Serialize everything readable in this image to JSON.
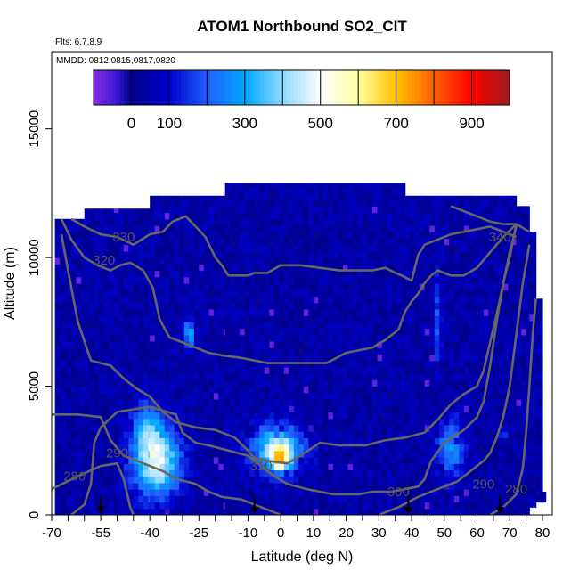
{
  "chart_data": {
    "type": "heatmap",
    "title": "ATOM1 Northbound SO2_CIT",
    "flights_note": "Flts: 6,7,8,9",
    "dates_note": "MMDD: 0812,0815,0817,0820",
    "xlabel": "Latitude (deg N)",
    "ylabel": "Altitude (m)",
    "xlim": [
      -70,
      83
    ],
    "ylim": [
      0,
      18000
    ],
    "x_ticks": [
      -70,
      -55,
      -40,
      -25,
      -10,
      0,
      10,
      20,
      30,
      40,
      50,
      60,
      70,
      80
    ],
    "y_ticks": [
      0,
      5000,
      10000,
      15000
    ],
    "colorbar": {
      "min": -100,
      "max": 1000,
      "ticks": [
        0,
        100,
        300,
        500,
        700,
        900
      ],
      "stops": [
        {
          "value": -100,
          "color": "#8a2be2"
        },
        {
          "value": -40,
          "color": "#3a1ad6"
        },
        {
          "value": 0,
          "color": "#00008b"
        },
        {
          "value": 100,
          "color": "#0000cd"
        },
        {
          "value": 200,
          "color": "#1e60ff"
        },
        {
          "value": 300,
          "color": "#00a8ff"
        },
        {
          "value": 400,
          "color": "#8fd8ff"
        },
        {
          "value": 500,
          "color": "#ffffff"
        },
        {
          "value": 600,
          "color": "#ffffa0"
        },
        {
          "value": 700,
          "color": "#ffc000"
        },
        {
          "value": 800,
          "color": "#ff6000"
        },
        {
          "value": 900,
          "color": "#ff0000"
        },
        {
          "value": 1000,
          "color": "#9b1b1b"
        }
      ]
    },
    "background_so2": 40,
    "coverage_columns": [
      {
        "lat": [
          -69,
          -67
        ],
        "alt": [
          0,
          11500
        ]
      },
      {
        "lat": [
          -67,
          -60
        ],
        "alt": [
          0,
          11500
        ]
      },
      {
        "lat": [
          -60,
          -40
        ],
        "alt": [
          0,
          11900
        ]
      },
      {
        "lat": [
          -40,
          -17
        ],
        "alt": [
          0,
          12400
        ]
      },
      {
        "lat": [
          -17,
          38
        ],
        "alt": [
          0,
          12900
        ]
      },
      {
        "lat": [
          38,
          72
        ],
        "alt": [
          0,
          12400
        ]
      },
      {
        "lat": [
          72,
          76
        ],
        "alt": [
          0,
          12000
        ]
      },
      {
        "lat": [
          76,
          78
        ],
        "alt": [
          300,
          11000
        ]
      },
      {
        "lat": [
          78,
          80
        ],
        "alt": [
          500,
          8400
        ]
      },
      {
        "lat": [
          80,
          81
        ],
        "alt": [
          500,
          900
        ]
      }
    ],
    "plumes": [
      {
        "lat": -38,
        "alt": 2100,
        "dlat": 7,
        "dalt": 1300,
        "peak": 460
      },
      {
        "lat": -41,
        "alt": 3500,
        "dlat": 4,
        "dalt": 900,
        "peak": 220
      },
      {
        "lat": -28,
        "alt": 7000,
        "dlat": 1.6,
        "dalt": 500,
        "peak": 330
      },
      {
        "lat": -1,
        "alt": 2600,
        "dlat": 8,
        "dalt": 900,
        "peak": 370
      },
      {
        "lat": 0,
        "alt": 2200,
        "dlat": 3,
        "dalt": 500,
        "peak": 430
      },
      {
        "lat": 52,
        "alt": 2600,
        "dlat": 4,
        "dalt": 1100,
        "peak": 230
      },
      {
        "lat": 48,
        "alt": 7500,
        "dlat": 1.2,
        "dalt": 1800,
        "peak": 150
      },
      {
        "lat": 68,
        "alt": 3100,
        "dlat": 0.6,
        "dalt": 200,
        "peak": 360
      }
    ],
    "theta_contours": [
      {
        "label": "280",
        "label_at": [
          -63,
          1500
        ],
        "points": [
          [
            -70,
            1000
          ],
          [
            -62,
            1500
          ],
          [
            -55,
            1900
          ],
          [
            -50,
            2000
          ],
          [
            -48,
            1400
          ],
          [
            -46,
            300
          ],
          [
            -45,
            0
          ]
        ]
      },
      {
        "label": "290",
        "label_at": [
          -50,
          2400
        ],
        "points": [
          [
            -70,
            3900
          ],
          [
            -62,
            3900
          ],
          [
            -55,
            3800
          ],
          [
            -52,
            2900
          ],
          [
            -48,
            2300
          ],
          [
            -44,
            2100
          ],
          [
            -40,
            1900
          ],
          [
            -36,
            1700
          ],
          [
            -32,
            1400
          ],
          [
            -26,
            1200
          ],
          [
            -22,
            900
          ],
          [
            -18,
            700
          ],
          [
            -12,
            600
          ],
          [
            -8,
            400
          ],
          [
            -4,
            200
          ],
          [
            0,
            0
          ]
        ]
      },
      {
        "label": "290",
        "label_at": [
          62,
          1200
        ],
        "points": [
          [
            30,
            0
          ],
          [
            36,
            300
          ],
          [
            42,
            700
          ],
          [
            48,
            1000
          ],
          [
            54,
            1300
          ],
          [
            58,
            1700
          ],
          [
            62,
            2100
          ],
          [
            64,
            2400
          ],
          [
            66,
            3000
          ],
          [
            68,
            3800
          ],
          [
            70,
            5000
          ],
          [
            72,
            7000
          ],
          [
            74,
            9000
          ],
          [
            76,
            10500
          ]
        ]
      },
      {
        "label": "280",
        "label_at": [
          72,
          1000
        ],
        "points": [
          [
            64,
            0
          ],
          [
            68,
            300
          ],
          [
            72,
            800
          ],
          [
            74,
            1800
          ],
          [
            75,
            3200
          ],
          [
            76,
            5000
          ],
          [
            77,
            7000
          ],
          [
            78,
            8400
          ]
        ]
      },
      {
        "label": "300",
        "label_at": [
          36,
          900
        ],
        "points": [
          [
            -64,
            0
          ],
          [
            -60,
            400
          ],
          [
            -58,
            1200
          ],
          [
            -57,
            2800
          ],
          [
            -55,
            3400
          ],
          [
            -50,
            4000
          ],
          [
            -40,
            4200
          ],
          [
            -32,
            3900
          ],
          [
            -30,
            3200
          ],
          [
            -26,
            2800
          ],
          [
            -22,
            2700
          ],
          [
            -16,
            2500
          ],
          [
            -10,
            2300
          ],
          [
            -6,
            1900
          ],
          [
            -2,
            1500
          ],
          [
            2,
            1200
          ],
          [
            8,
            1000
          ],
          [
            16,
            800
          ],
          [
            24,
            800
          ],
          [
            28,
            900
          ],
          [
            34,
            900
          ],
          [
            42,
            1100
          ],
          [
            44,
            1400
          ],
          [
            46,
            2100
          ],
          [
            50,
            2800
          ],
          [
            56,
            3300
          ],
          [
            60,
            3800
          ],
          [
            62,
            4400
          ],
          [
            64,
            5800
          ],
          [
            66,
            7500
          ],
          [
            68,
            9000
          ],
          [
            70,
            10200
          ],
          [
            72,
            11200
          ]
        ]
      },
      {
        "label": "310",
        "label_at": [
          -6,
          1900
        ],
        "points": [
          [
            -67,
            10900
          ],
          [
            -65,
            9500
          ],
          [
            -62,
            7500
          ],
          [
            -58,
            6000
          ],
          [
            -52,
            5800
          ],
          [
            -48,
            5300
          ],
          [
            -44,
            4900
          ],
          [
            -40,
            4600
          ],
          [
            -36,
            4000
          ],
          [
            -32,
            3600
          ],
          [
            -26,
            3400
          ],
          [
            -20,
            3300
          ],
          [
            -14,
            3000
          ],
          [
            -10,
            2500
          ],
          [
            -8,
            2200
          ],
          [
            -4,
            2100
          ],
          [
            2,
            2000
          ],
          [
            6,
            2300
          ],
          [
            12,
            2800
          ],
          [
            18,
            2700
          ],
          [
            26,
            2700
          ],
          [
            32,
            2900
          ],
          [
            38,
            3000
          ],
          [
            44,
            3200
          ],
          [
            48,
            3700
          ],
          [
            52,
            4300
          ],
          [
            56,
            4700
          ],
          [
            60,
            5000
          ],
          [
            62,
            5600
          ],
          [
            64,
            6700
          ],
          [
            66,
            7800
          ],
          [
            68,
            9000
          ],
          [
            70,
            10000
          ],
          [
            72,
            11300
          ]
        ]
      },
      {
        "label": "320",
        "label_at": [
          -54,
          9900
        ],
        "points": [
          [
            -67,
            11500
          ],
          [
            -64,
            10700
          ],
          [
            -60,
            10000
          ],
          [
            -56,
            9700
          ],
          [
            -52,
            9500
          ],
          [
            -49,
            9700
          ],
          [
            -46,
            9800
          ],
          [
            -42,
            9500
          ],
          [
            -39,
            8800
          ],
          [
            -37,
            7600
          ],
          [
            -34,
            6900
          ],
          [
            -30,
            6700
          ],
          [
            -26,
            6500
          ],
          [
            -22,
            6300
          ],
          [
            -18,
            6200
          ],
          [
            -12,
            6100
          ],
          [
            -8,
            6000
          ],
          [
            -4,
            5900
          ],
          [
            2,
            5900
          ],
          [
            8,
            5900
          ],
          [
            14,
            5900
          ],
          [
            20,
            6300
          ],
          [
            24,
            6400
          ],
          [
            28,
            6500
          ],
          [
            32,
            6800
          ],
          [
            34,
            7000
          ],
          [
            36,
            7200
          ],
          [
            38,
            7900
          ],
          [
            40,
            8300
          ],
          [
            42,
            8600
          ],
          [
            44,
            9000
          ],
          [
            46,
            9300
          ],
          [
            48,
            9500
          ],
          [
            50,
            9400
          ],
          [
            52,
            9300
          ],
          [
            56,
            9300
          ],
          [
            60,
            9600
          ],
          [
            64,
            10200
          ],
          [
            68,
            10800
          ],
          [
            72,
            11300
          ]
        ]
      },
      {
        "label": "330",
        "label_at": [
          -48,
          10800
        ],
        "points": [
          [
            -64,
            11500
          ],
          [
            -60,
            11200
          ],
          [
            -55,
            10900
          ],
          [
            -50,
            10800
          ],
          [
            -45,
            10500
          ],
          [
            -40,
            10900
          ],
          [
            -36,
            11000
          ],
          [
            -33,
            11400
          ],
          [
            -29,
            11600
          ],
          [
            -26,
            11200
          ],
          [
            -23,
            10800
          ],
          [
            -20,
            10000
          ],
          [
            -18,
            9700
          ],
          [
            -16,
            9300
          ],
          [
            -10,
            9300
          ],
          [
            -8,
            9400
          ],
          [
            -4,
            9400
          ],
          [
            0,
            9700
          ],
          [
            6,
            9700
          ],
          [
            12,
            9600
          ],
          [
            18,
            9500
          ],
          [
            24,
            9500
          ],
          [
            28,
            9500
          ],
          [
            32,
            9600
          ],
          [
            35,
            9400
          ],
          [
            37,
            9300
          ],
          [
            40,
            9100
          ],
          [
            41,
            9600
          ],
          [
            42,
            10100
          ],
          [
            44,
            10500
          ],
          [
            48,
            10700
          ],
          [
            52,
            10900
          ],
          [
            56,
            11000
          ],
          [
            60,
            11100
          ],
          [
            64,
            11200
          ],
          [
            68,
            11000
          ],
          [
            72,
            10800
          ]
        ]
      },
      {
        "label": "340",
        "label_at": [
          67,
          10800
        ],
        "points": [
          [
            52,
            12000
          ],
          [
            56,
            11800
          ],
          [
            60,
            11600
          ],
          [
            64,
            11400
          ],
          [
            68,
            11300
          ],
          [
            72,
            11300
          ],
          [
            76,
            11000
          ]
        ]
      }
    ],
    "markers": [
      {
        "lat": -55
      },
      {
        "lat": -8
      },
      {
        "lat": 39
      },
      {
        "lat": 67
      }
    ]
  }
}
